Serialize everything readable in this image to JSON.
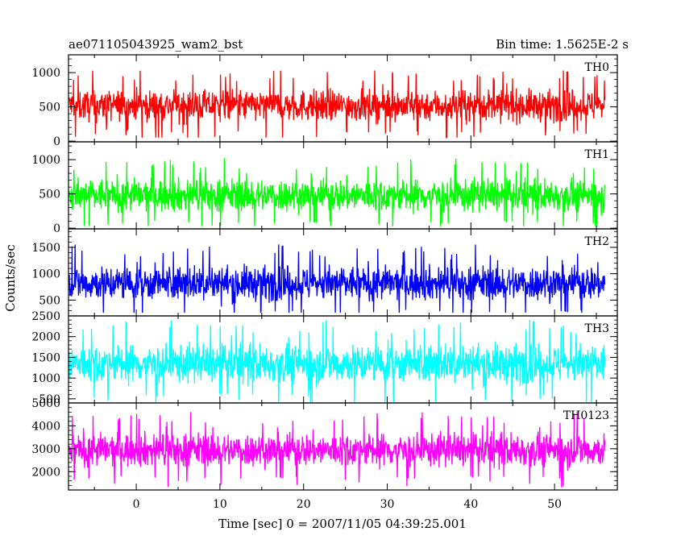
{
  "header": {
    "left": "ae071105043925_wam2_bst",
    "right": "Bin time: 1.5625E-2 s"
  },
  "ylabel": "Counts/sec",
  "xlabel": "Time [sec] 0 = 2007/11/05 04:39:25.001",
  "chart_data": {
    "type": "line",
    "x_range": [
      -8,
      56
    ],
    "xlim": [
      -8.1,
      57.5
    ],
    "x_ticks": [
      0,
      10,
      20,
      30,
      40,
      50
    ],
    "bin_time": 0.015625,
    "colors": {
      "axes": "#000000",
      "background": "#ffffff"
    },
    "panels": [
      {
        "name": "TH0",
        "color": "#ff0000",
        "ylim": [
          -10,
          1260
        ],
        "y_ticks": [
          0,
          500,
          1000
        ],
        "low": 50,
        "high": 1250,
        "center": 520,
        "spread": 160
      },
      {
        "name": "TH1",
        "color": "#00ff00",
        "ylim": [
          -10,
          1260
        ],
        "y_ticks": [
          0,
          500,
          1000
        ],
        "low": 30,
        "high": 1250,
        "center": 480,
        "spread": 170
      },
      {
        "name": "TH2",
        "color": "#0000ff",
        "ylim": [
          200,
          1850
        ],
        "y_ticks": [
          500,
          1000,
          1500
        ],
        "low": 260,
        "high": 1800,
        "center": 820,
        "spread": 230
      },
      {
        "name": "TH3",
        "color": "#00ffff",
        "ylim": [
          400,
          2500
        ],
        "y_ticks": [
          500,
          1000,
          1500,
          2000,
          2500
        ],
        "low": 420,
        "high": 2500,
        "center": 1350,
        "spread": 330
      },
      {
        "name": "TH0123",
        "color": "#ff00ff",
        "ylim": [
          1200,
          5000
        ],
        "y_ticks": [
          2000,
          3000,
          4000,
          5000
        ],
        "low": 1300,
        "high": 4950,
        "center": 2950,
        "spread": 520
      }
    ]
  }
}
